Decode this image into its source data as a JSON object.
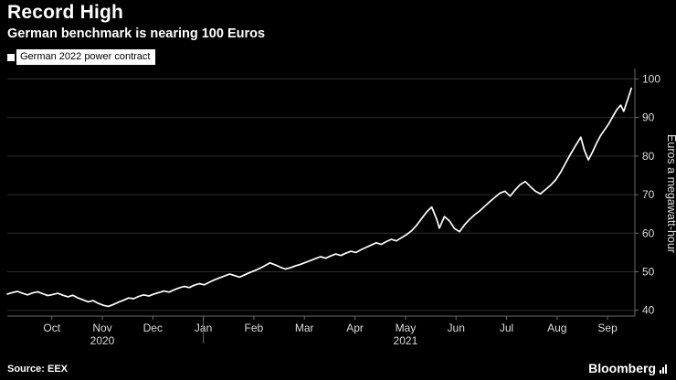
{
  "header": {
    "title": "Record High",
    "subtitle": "German benchmark is nearing 100 Euros"
  },
  "legend": {
    "label": "German 2022 power contract"
  },
  "chart_data": {
    "type": "line",
    "title": "Record High",
    "subtitle": "German benchmark is nearing 100 Euros",
    "ylabel": "Euros a megawatt-hour",
    "unit": "EUR/MWh",
    "legend_position": "top-left",
    "grid": true,
    "background": "#000000",
    "grid_color": "#2d2d2d",
    "axis_color": "#6a6a6a",
    "label_color": "#dcdcdc",
    "ylim": [
      38.5,
      102
    ],
    "y_ticks": [
      40,
      50,
      60,
      70,
      80,
      90,
      100
    ],
    "x_range": [
      0,
      12.42
    ],
    "x_ticks": [
      {
        "label": "Oct",
        "m": 0.88
      },
      {
        "label": "Nov",
        "m": 1.88
      },
      {
        "label": "Dec",
        "m": 2.88
      },
      {
        "label": "Jan",
        "m": 3.88
      },
      {
        "label": "Feb",
        "m": 4.88
      },
      {
        "label": "Mar",
        "m": 5.88
      },
      {
        "label": "Apr",
        "m": 6.88
      },
      {
        "label": "May",
        "m": 7.88
      },
      {
        "label": "Jun",
        "m": 8.88
      },
      {
        "label": "Jul",
        "m": 9.88
      },
      {
        "label": "Aug",
        "m": 10.88
      },
      {
        "label": "Sep",
        "m": 11.88
      }
    ],
    "year_labels": [
      {
        "label": "2020",
        "m": 1.88
      },
      {
        "label": "2021",
        "m": 7.88
      }
    ],
    "year_dividers": [
      3.88
    ],
    "series": [
      {
        "name": "German 2022 power contract",
        "color": "#ffffff",
        "points": [
          [
            0,
            44.2
          ],
          [
            0.1,
            44.6
          ],
          [
            0.2,
            44.9
          ],
          [
            0.3,
            44.4
          ],
          [
            0.4,
            44.0
          ],
          [
            0.5,
            44.5
          ],
          [
            0.6,
            44.8
          ],
          [
            0.7,
            44.3
          ],
          [
            0.8,
            43.8
          ],
          [
            0.9,
            44.1
          ],
          [
            1.0,
            44.4
          ],
          [
            1.1,
            43.9
          ],
          [
            1.2,
            43.5
          ],
          [
            1.3,
            43.9
          ],
          [
            1.4,
            43.2
          ],
          [
            1.5,
            42.7
          ],
          [
            1.6,
            42.2
          ],
          [
            1.7,
            42.5
          ],
          [
            1.8,
            41.8
          ],
          [
            1.9,
            41.3
          ],
          [
            2.0,
            41.0
          ],
          [
            2.1,
            41.5
          ],
          [
            2.2,
            42.1
          ],
          [
            2.3,
            42.6
          ],
          [
            2.4,
            43.2
          ],
          [
            2.5,
            43.0
          ],
          [
            2.6,
            43.6
          ],
          [
            2.7,
            44.0
          ],
          [
            2.8,
            43.7
          ],
          [
            2.9,
            44.2
          ],
          [
            3.0,
            44.6
          ],
          [
            3.1,
            45.0
          ],
          [
            3.2,
            44.7
          ],
          [
            3.3,
            45.3
          ],
          [
            3.4,
            45.8
          ],
          [
            3.5,
            46.2
          ],
          [
            3.6,
            45.9
          ],
          [
            3.7,
            46.5
          ],
          [
            3.8,
            46.9
          ],
          [
            3.9,
            46.6
          ],
          [
            4.0,
            47.3
          ],
          [
            4.1,
            47.9
          ],
          [
            4.2,
            48.4
          ],
          [
            4.3,
            48.9
          ],
          [
            4.4,
            49.4
          ],
          [
            4.5,
            49.0
          ],
          [
            4.6,
            48.6
          ],
          [
            4.7,
            49.2
          ],
          [
            4.8,
            49.8
          ],
          [
            4.9,
            50.3
          ],
          [
            5.0,
            50.9
          ],
          [
            5.1,
            51.6
          ],
          [
            5.2,
            52.3
          ],
          [
            5.3,
            51.8
          ],
          [
            5.4,
            51.2
          ],
          [
            5.5,
            50.7
          ],
          [
            5.6,
            51.0
          ],
          [
            5.7,
            51.5
          ],
          [
            5.8,
            51.9
          ],
          [
            5.9,
            52.4
          ],
          [
            6.0,
            52.9
          ],
          [
            6.1,
            53.4
          ],
          [
            6.2,
            53.9
          ],
          [
            6.3,
            53.5
          ],
          [
            6.4,
            54.1
          ],
          [
            6.5,
            54.6
          ],
          [
            6.6,
            54.2
          ],
          [
            6.7,
            54.8
          ],
          [
            6.8,
            55.3
          ],
          [
            6.9,
            55.0
          ],
          [
            7.0,
            55.7
          ],
          [
            7.1,
            56.3
          ],
          [
            7.2,
            56.9
          ],
          [
            7.3,
            57.5
          ],
          [
            7.4,
            57.1
          ],
          [
            7.5,
            57.8
          ],
          [
            7.6,
            58.4
          ],
          [
            7.7,
            58.0
          ],
          [
            7.8,
            58.8
          ],
          [
            7.9,
            59.6
          ],
          [
            8.0,
            60.6
          ],
          [
            8.1,
            62.0
          ],
          [
            8.2,
            63.8
          ],
          [
            8.3,
            65.5
          ],
          [
            8.4,
            66.8
          ],
          [
            8.5,
            63.5
          ],
          [
            8.55,
            61.3
          ],
          [
            8.65,
            64.3
          ],
          [
            8.75,
            63.2
          ],
          [
            8.85,
            61.2
          ],
          [
            8.95,
            60.4
          ],
          [
            9.05,
            62.2
          ],
          [
            9.15,
            63.6
          ],
          [
            9.25,
            64.8
          ],
          [
            9.35,
            65.8
          ],
          [
            9.45,
            67.0
          ],
          [
            9.55,
            68.2
          ],
          [
            9.65,
            69.3
          ],
          [
            9.75,
            70.4
          ],
          [
            9.85,
            70.9
          ],
          [
            9.95,
            69.6
          ],
          [
            10.05,
            71.2
          ],
          [
            10.15,
            72.6
          ],
          [
            10.25,
            73.4
          ],
          [
            10.35,
            72.1
          ],
          [
            10.45,
            70.9
          ],
          [
            10.55,
            70.2
          ],
          [
            10.65,
            71.3
          ],
          [
            10.75,
            72.4
          ],
          [
            10.85,
            73.8
          ],
          [
            10.95,
            75.8
          ],
          [
            11.05,
            78.2
          ],
          [
            11.15,
            80.6
          ],
          [
            11.25,
            82.8
          ],
          [
            11.35,
            84.9
          ],
          [
            11.42,
            81.5
          ],
          [
            11.5,
            79.0
          ],
          [
            11.58,
            81.0
          ],
          [
            11.66,
            83.3
          ],
          [
            11.74,
            85.3
          ],
          [
            11.82,
            86.8
          ],
          [
            11.9,
            88.3
          ],
          [
            11.98,
            90.2
          ],
          [
            12.06,
            92.0
          ],
          [
            12.14,
            93.2
          ],
          [
            12.2,
            91.6
          ],
          [
            12.28,
            94.8
          ],
          [
            12.35,
            97.6
          ]
        ]
      }
    ]
  },
  "footer": {
    "source": "Source: EEX",
    "brand": "Bloomberg"
  }
}
